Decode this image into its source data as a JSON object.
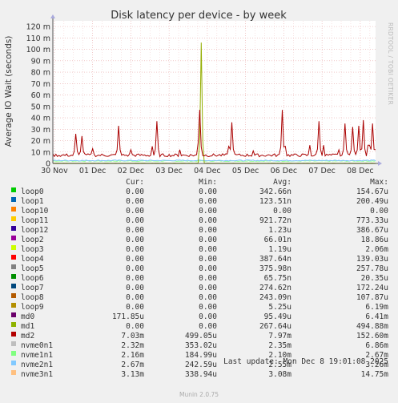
{
  "chart_data": {
    "type": "line",
    "title": "Disk latency per device - by week",
    "ylabel": "Average IO Wait (seconds)",
    "ylim": [
      0,
      0.125
    ],
    "grid": true,
    "y_ticks": [
      {
        "value": 0,
        "label": "0"
      },
      {
        "value": 0.01,
        "label": "10 m"
      },
      {
        "value": 0.02,
        "label": "20 m"
      },
      {
        "value": 0.03,
        "label": "30 m"
      },
      {
        "value": 0.04,
        "label": "40 m"
      },
      {
        "value": 0.05,
        "label": "50 m"
      },
      {
        "value": 0.06,
        "label": "60 m"
      },
      {
        "value": 0.07,
        "label": "70 m"
      },
      {
        "value": 0.08,
        "label": "80 m"
      },
      {
        "value": 0.09,
        "label": "90 m"
      },
      {
        "value": 0.1,
        "label": "100 m"
      },
      {
        "value": 0.11,
        "label": "110 m"
      },
      {
        "value": 0.12,
        "label": "120 m"
      }
    ],
    "x_ticks": [
      {
        "day": 0,
        "label": "30 Nov"
      },
      {
        "day": 1,
        "label": "01 Dec"
      },
      {
        "day": 2,
        "label": "02 Dec"
      },
      {
        "day": 3,
        "label": "03 Dec"
      },
      {
        "day": 4,
        "label": "04 Dec"
      },
      {
        "day": 5,
        "label": "05 Dec"
      },
      {
        "day": 6,
        "label": "06 Dec"
      },
      {
        "day": 7,
        "label": "07 Dec"
      },
      {
        "day": 8,
        "label": "08 Dec"
      }
    ],
    "x_range_days": [
      -0.04,
      8.4
    ],
    "series": [
      {
        "name": "md2",
        "color": "#aa0000",
        "base": 0.0072,
        "spikes": [
          [
            0.55,
            0.026
          ],
          [
            0.72,
            0.024
          ],
          [
            1.0,
            0.013
          ],
          [
            1.7,
            0.033
          ],
          [
            2.02,
            0.012
          ],
          [
            2.55,
            0.015
          ],
          [
            2.68,
            0.037
          ],
          [
            3.3,
            0.012
          ],
          [
            3.75,
            0.018
          ],
          [
            3.82,
            0.047
          ],
          [
            4.55,
            0.015
          ],
          [
            4.63,
            0.036
          ],
          [
            5.2,
            0.011
          ],
          [
            5.95,
            0.047
          ],
          [
            6.05,
            0.015
          ],
          [
            6.7,
            0.016
          ],
          [
            6.92,
            0.037
          ],
          [
            7.05,
            0.016
          ],
          [
            7.45,
            0.012
          ],
          [
            7.62,
            0.035
          ],
          [
            7.8,
            0.032
          ],
          [
            7.95,
            0.033
          ],
          [
            8.1,
            0.038
          ],
          [
            8.22,
            0.016
          ],
          [
            8.3,
            0.035
          ],
          [
            8.38,
            0.012
          ]
        ]
      },
      {
        "name": "md1",
        "color": "#94ad00",
        "base": 0.0003,
        "spikes": [
          [
            3.83,
            0.106
          ]
        ]
      },
      {
        "name": "nvme2n1",
        "color": "#80c0ff",
        "base": 0.0026,
        "spikes": []
      },
      {
        "name": "nvme1n1",
        "color": "#99ff99",
        "base": 0.0021,
        "spikes": []
      }
    ]
  },
  "legend": {
    "headers": {
      "cur": "Cur:",
      "min": "Min:",
      "avg": "Avg:",
      "max": "Max:"
    },
    "rows": [
      {
        "name": "loop0",
        "color": "#00cc00",
        "cur": "0.00",
        "min": "0.00",
        "avg": "342.66n",
        "max": "154.67u"
      },
      {
        "name": "loop1",
        "color": "#0066b3",
        "cur": "0.00",
        "min": "0.00",
        "avg": "123.51n",
        "max": "200.49u"
      },
      {
        "name": "loop10",
        "color": "#ff8000",
        "cur": "0.00",
        "min": "0.00",
        "avg": "0.00",
        "max": "0.00"
      },
      {
        "name": "loop11",
        "color": "#ffcc00",
        "cur": "0.00",
        "min": "0.00",
        "avg": "921.72n",
        "max": "773.33u"
      },
      {
        "name": "loop12",
        "color": "#330099",
        "cur": "0.00",
        "min": "0.00",
        "avg": "1.23u",
        "max": "386.67u"
      },
      {
        "name": "loop2",
        "color": "#990099",
        "cur": "0.00",
        "min": "0.00",
        "avg": "66.01n",
        "max": "18.86u"
      },
      {
        "name": "loop3",
        "color": "#ccff00",
        "cur": "0.00",
        "min": "0.00",
        "avg": "1.19u",
        "max": "2.06m"
      },
      {
        "name": "loop4",
        "color": "#ff0000",
        "cur": "0.00",
        "min": "0.00",
        "avg": "387.64n",
        "max": "139.03u"
      },
      {
        "name": "loop5",
        "color": "#808080",
        "cur": "0.00",
        "min": "0.00",
        "avg": "375.98n",
        "max": "257.78u"
      },
      {
        "name": "loop6",
        "color": "#008f00",
        "cur": "0.00",
        "min": "0.00",
        "avg": "65.75n",
        "max": "20.35u"
      },
      {
        "name": "loop7",
        "color": "#00487d",
        "cur": "0.00",
        "min": "0.00",
        "avg": "274.62n",
        "max": "172.24u"
      },
      {
        "name": "loop8",
        "color": "#b35a00",
        "cur": "0.00",
        "min": "0.00",
        "avg": "243.09n",
        "max": "107.87u"
      },
      {
        "name": "loop9",
        "color": "#b38f00",
        "cur": "0.00",
        "min": "0.00",
        "avg": "5.25u",
        "max": "6.19m"
      },
      {
        "name": "md0",
        "color": "#6b006b",
        "cur": "171.85u",
        "min": "0.00",
        "avg": "95.49u",
        "max": "6.41m"
      },
      {
        "name": "md1",
        "color": "#8fb300",
        "cur": "0.00",
        "min": "0.00",
        "avg": "267.64u",
        "max": "494.88m"
      },
      {
        "name": "md2",
        "color": "#b30000",
        "cur": "7.03m",
        "min": "499.05u",
        "avg": "7.97m",
        "max": "152.60m"
      },
      {
        "name": "nvme0n1",
        "color": "#bebebe",
        "cur": "2.32m",
        "min": "353.02u",
        "avg": "2.35m",
        "max": "6.86m"
      },
      {
        "name": "nvme1n1",
        "color": "#80ff80",
        "cur": "2.16m",
        "min": "184.99u",
        "avg": "2.10m",
        "max": "2.67m"
      },
      {
        "name": "nvme2n1",
        "color": "#80c9ff",
        "cur": "2.67m",
        "min": "242.59u",
        "avg": "2.55m",
        "max": "3.26m"
      },
      {
        "name": "nvme3n1",
        "color": "#ffc080",
        "cur": "3.13m",
        "min": "338.94u",
        "avg": "3.08m",
        "max": "14.75m"
      }
    ]
  },
  "last_update": "Last update: Mon Dec  8 19:01:08 2025",
  "side_label": "RRDTOOL / TOBI OETIKER",
  "generator": "Munin 2.0.75"
}
